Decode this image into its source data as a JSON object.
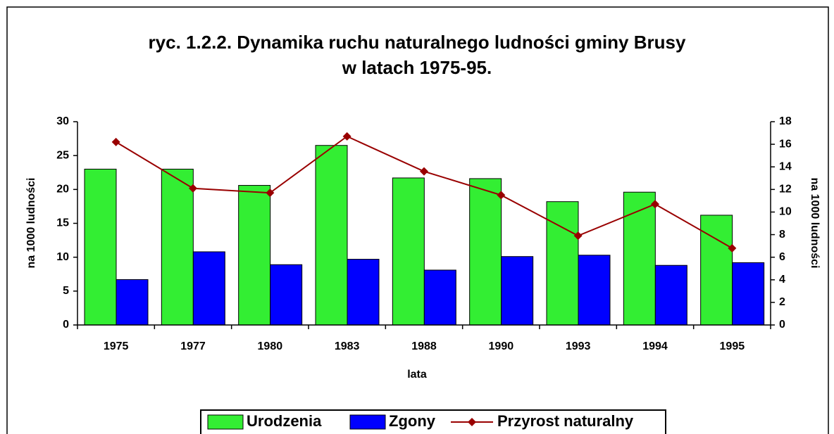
{
  "chart_data": {
    "type": "bar-line",
    "title": [
      "ryc. 1.2.2. Dynamika ruchu naturalnego ludności gminy Brusy",
      "w latach 1975-95."
    ],
    "x_label": "lata",
    "y_label": "na 1000 ludności",
    "y2_label": "na 1000 ludności",
    "categories": [
      "1975",
      "1977",
      "1980",
      "1983",
      "1988",
      "1990",
      "1993",
      "1994",
      "1995"
    ],
    "series": [
      {
        "name": "Urodzenia",
        "type": "bar",
        "color": "#33ee33",
        "values": [
          23.0,
          23.0,
          20.6,
          26.5,
          21.7,
          21.6,
          18.2,
          19.6,
          16.2
        ]
      },
      {
        "name": "Zgony",
        "type": "bar",
        "color": "#0000ff",
        "values": [
          6.7,
          10.8,
          8.9,
          9.7,
          8.1,
          10.1,
          10.3,
          8.8,
          9.2
        ]
      },
      {
        "name": "Przyrost naturalny",
        "type": "line",
        "axis": "y2",
        "color": "#990000",
        "values": [
          16.2,
          12.1,
          11.7,
          16.7,
          13.6,
          11.5,
          7.9,
          10.7,
          6.8
        ]
      }
    ],
    "ylim": [
      0,
      30
    ],
    "yticks": [
      0,
      5,
      10,
      15,
      20,
      25,
      30
    ],
    "y2lim": [
      0,
      18
    ],
    "y2ticks": [
      0,
      2,
      4,
      6,
      8,
      10,
      12,
      14,
      16,
      18
    ],
    "legend": "bottom"
  }
}
